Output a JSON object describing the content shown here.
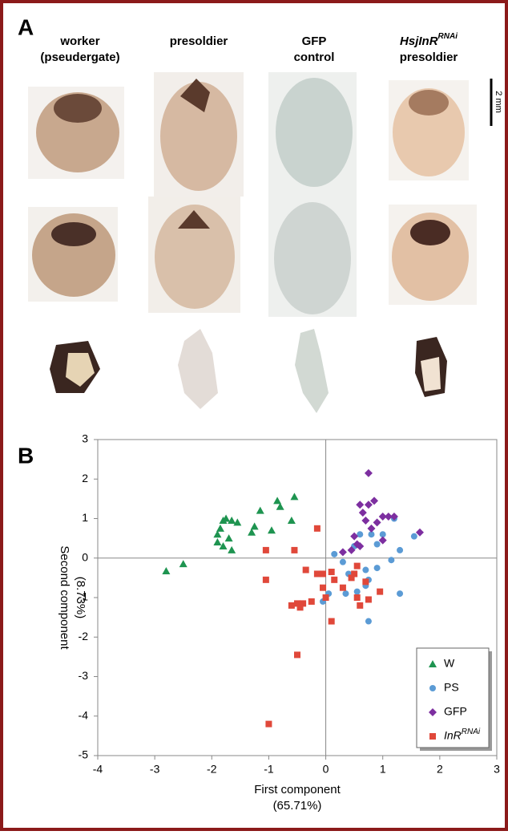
{
  "panel_a": {
    "label": "A",
    "columns": [
      {
        "lines": [
          "worker",
          "(pseudergate)"
        ]
      },
      {
        "lines": [
          "presoldier"
        ]
      },
      {
        "lines": [
          "GFP",
          "control"
        ]
      },
      {
        "lines": [
          "HsjInR",
          "presoldier"
        ],
        "superscript": "RNAi"
      }
    ],
    "scale_bar": "2 mm"
  },
  "panel_b": {
    "label": "B"
  },
  "chart_data": {
    "type": "scatter",
    "x_label": [
      "First component",
      "(65.71%)"
    ],
    "y_label": [
      "Second component",
      "(8.73%)"
    ],
    "xlim": [
      -4,
      3
    ],
    "ylim": [
      -5,
      3
    ],
    "xticks": [
      -4,
      -3,
      -2,
      -1,
      0,
      1,
      2,
      3
    ],
    "yticks": [
      -5,
      -4,
      -3,
      -2,
      -1,
      0,
      1,
      2,
      3
    ],
    "legend": "lower right",
    "series": [
      {
        "name": "W",
        "marker": "triangle",
        "color": "#1e9450",
        "x": [
          -2.8,
          -2.5,
          -1.9,
          -1.85,
          -1.8,
          -1.75,
          -1.7,
          -1.65,
          -1.55,
          -1.8,
          -1.65,
          -1.9,
          -1.3,
          -1.25,
          -1.15,
          -0.85,
          -0.8,
          -0.55,
          -0.6,
          -0.95
        ],
        "values": [
          -0.33,
          -0.15,
          0.6,
          0.75,
          0.95,
          1.0,
          0.5,
          0.95,
          0.9,
          0.3,
          0.2,
          0.4,
          0.65,
          0.8,
          1.2,
          1.45,
          1.3,
          1.55,
          0.95,
          0.7
        ]
      },
      {
        "name": "PS",
        "marker": "circle",
        "color": "#5b9bd5",
        "x": [
          0.15,
          0.3,
          0.4,
          0.5,
          0.6,
          0.7,
          0.8,
          0.9,
          1.0,
          1.2,
          1.3,
          1.55,
          0.75,
          0.7,
          0.55,
          0.35,
          0.05,
          -0.05,
          1.3,
          0.75,
          1.15,
          0.9
        ],
        "values": [
          0.1,
          -0.1,
          -0.4,
          0.3,
          0.6,
          -0.3,
          0.6,
          0.35,
          0.6,
          1.0,
          0.2,
          0.55,
          -0.55,
          -0.7,
          -0.85,
          -0.9,
          -0.9,
          -1.1,
          -0.9,
          -1.6,
          -0.05,
          -0.25
        ]
      },
      {
        "name": "GFP",
        "marker": "diamond",
        "color": "#7d2fa0",
        "x": [
          0.75,
          0.6,
          0.75,
          0.85,
          0.65,
          0.7,
          0.8,
          0.9,
          1.0,
          1.1,
          1.2,
          1.65,
          0.5,
          0.55,
          0.6,
          0.45,
          0.3,
          1.0
        ],
        "values": [
          2.15,
          1.35,
          1.35,
          1.45,
          1.15,
          0.95,
          0.75,
          0.9,
          1.05,
          1.05,
          1.05,
          0.65,
          0.55,
          0.35,
          0.3,
          0.2,
          0.15,
          0.45
        ]
      },
      {
        "name": "InR",
        "superscript": "RNAi",
        "marker": "square",
        "color": "#e0483a",
        "x": [
          -1.0,
          -0.5,
          -1.05,
          -1.05,
          -0.55,
          -0.35,
          -0.15,
          -0.15,
          -0.05,
          0.1,
          0.15,
          -0.05,
          0.0,
          0.1,
          -0.6,
          -0.5,
          -0.4,
          -0.25,
          -0.45,
          0.55,
          0.5,
          0.7,
          0.45,
          0.55,
          0.6,
          0.75,
          0.95,
          0.3
        ],
        "values": [
          -4.2,
          -2.45,
          -0.55,
          0.2,
          0.2,
          -0.3,
          0.75,
          -0.4,
          -0.4,
          -0.35,
          -0.55,
          -0.75,
          -1.0,
          -1.6,
          -1.2,
          -1.15,
          -1.15,
          -1.1,
          -1.25,
          -0.2,
          -0.4,
          -0.6,
          -0.5,
          -1.0,
          -1.2,
          -1.05,
          -0.85,
          -0.75
        ]
      }
    ]
  }
}
